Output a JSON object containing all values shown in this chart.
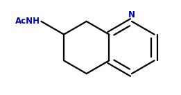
{
  "background_color": "#ffffff",
  "bond_color": "#000000",
  "text_color_acnh": "#0000bb",
  "text_color_n": "#0000bb",
  "line_width": 1.6,
  "acnh_label": "AcNH",
  "n_label": "N",
  "figsize": [
    2.61,
    1.37
  ],
  "dpi": 100,
  "bl": 0.35
}
